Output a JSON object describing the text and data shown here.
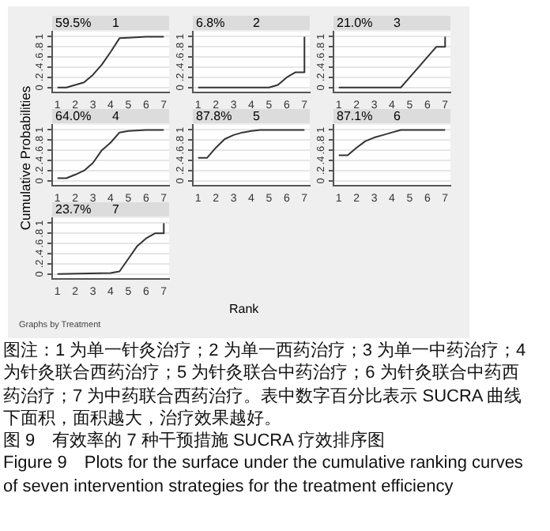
{
  "chart_data": [
    {
      "type": "line",
      "title": "1",
      "subtitle": "59.5%",
      "series": [
        {
          "color": "#333333",
          "x": [
            1,
            1.5,
            2,
            2.5,
            3,
            3.5,
            4,
            4.5,
            5,
            6,
            7
          ],
          "values": [
            0,
            0,
            0.05,
            0.1,
            0.25,
            0.45,
            0.7,
            0.97,
            0.98,
            1,
            1
          ]
        }
      ],
      "xlim": [
        0.7,
        7.3
      ],
      "xticks": [
        1,
        2,
        3,
        4,
        5,
        6,
        7
      ],
      "ylim": [
        -0.1,
        1.1
      ],
      "yticks": [
        {
          "value": 0,
          "label": "0"
        },
        {
          "value": 0.2,
          "label": ".2"
        },
        {
          "value": 0.4,
          "label": ".4"
        },
        {
          "value": 0.6,
          "label": ".6"
        },
        {
          "value": 0.8,
          "label": ".8"
        },
        {
          "value": 1,
          "label": "1"
        }
      ],
      "grid": "y"
    },
    {
      "type": "line",
      "title": "2",
      "subtitle": "6.8%",
      "series": [
        {
          "color": "#333333",
          "x": [
            1,
            5,
            5.5,
            6,
            6.5,
            7,
            7
          ],
          "values": [
            0,
            0,
            0.05,
            0.2,
            0.3,
            0.3,
            1
          ]
        }
      ],
      "xlim": [
        0.7,
        7.3
      ],
      "xticks": [
        1,
        2,
        3,
        4,
        5,
        6,
        7
      ],
      "ylim": [
        -0.1,
        1.1
      ],
      "yticks": [
        {
          "value": 0,
          "label": "0"
        },
        {
          "value": 0.2,
          "label": ".2"
        },
        {
          "value": 0.4,
          "label": ".4"
        },
        {
          "value": 0.6,
          "label": ".6"
        },
        {
          "value": 0.8,
          "label": ".8"
        },
        {
          "value": 1,
          "label": "1"
        }
      ],
      "grid": "y"
    },
    {
      "type": "line",
      "title": "3",
      "subtitle": "21.0%",
      "series": [
        {
          "color": "#333333",
          "x": [
            1,
            4.5,
            5,
            5.5,
            6,
            6.5,
            7,
            7
          ],
          "values": [
            0,
            0,
            0.2,
            0.4,
            0.6,
            0.8,
            0.8,
            1
          ]
        }
      ],
      "xlim": [
        0.7,
        7.3
      ],
      "xticks": [
        1,
        2,
        3,
        4,
        5,
        6,
        7
      ],
      "ylim": [
        -0.1,
        1.1
      ],
      "yticks": [
        {
          "value": 0,
          "label": "0"
        },
        {
          "value": 0.2,
          "label": ".2"
        },
        {
          "value": 0.4,
          "label": ".4"
        },
        {
          "value": 0.6,
          "label": ".6"
        },
        {
          "value": 0.8,
          "label": ".8"
        },
        {
          "value": 1,
          "label": "1"
        }
      ],
      "grid": "y"
    },
    {
      "type": "line",
      "title": "4",
      "subtitle": "64.0%",
      "series": [
        {
          "color": "#333333",
          "x": [
            1,
            1.5,
            2,
            2.5,
            3,
            3.5,
            4,
            4.5,
            5,
            6,
            7
          ],
          "values": [
            0.05,
            0.05,
            0.12,
            0.2,
            0.35,
            0.6,
            0.75,
            0.95,
            0.98,
            1,
            1
          ]
        }
      ],
      "xlim": [
        0.7,
        7.3
      ],
      "xticks": [
        1,
        2,
        3,
        4,
        5,
        6,
        7
      ],
      "ylim": [
        -0.1,
        1.1
      ],
      "yticks": [
        {
          "value": 0,
          "label": "0"
        },
        {
          "value": 0.2,
          "label": ".2"
        },
        {
          "value": 0.4,
          "label": ".4"
        },
        {
          "value": 0.6,
          "label": ".6"
        },
        {
          "value": 0.8,
          "label": ".8"
        },
        {
          "value": 1,
          "label": "1"
        }
      ],
      "grid": "y"
    },
    {
      "type": "line",
      "title": "5",
      "subtitle": "87.8%",
      "series": [
        {
          "color": "#333333",
          "x": [
            1,
            1.5,
            2,
            2.5,
            3,
            3.5,
            4,
            4.5,
            7
          ],
          "values": [
            0.45,
            0.45,
            0.65,
            0.82,
            0.9,
            0.95,
            0.98,
            1,
            1
          ]
        }
      ],
      "xlim": [
        0.7,
        7.3
      ],
      "xticks": [
        1,
        2,
        3,
        4,
        5,
        6,
        7
      ],
      "ylim": [
        -0.1,
        1.1
      ],
      "yticks": [
        {
          "value": 0,
          "label": "0"
        },
        {
          "value": 0.2,
          "label": ".2"
        },
        {
          "value": 0.4,
          "label": ".4"
        },
        {
          "value": 0.6,
          "label": ".6"
        },
        {
          "value": 0.8,
          "label": ".8"
        },
        {
          "value": 1,
          "label": "1"
        }
      ],
      "grid": "y"
    },
    {
      "type": "line",
      "title": "6",
      "subtitle": "87.1%",
      "series": [
        {
          "color": "#333333",
          "x": [
            1,
            1.5,
            2,
            2.5,
            3,
            3.5,
            4,
            4.5,
            7
          ],
          "values": [
            0.5,
            0.5,
            0.65,
            0.78,
            0.85,
            0.9,
            0.95,
            1,
            1
          ]
        }
      ],
      "xlim": [
        0.7,
        7.3
      ],
      "xticks": [
        1,
        2,
        3,
        4,
        5,
        6,
        7
      ],
      "ylim": [
        -0.1,
        1.1
      ],
      "yticks": [
        {
          "value": 0,
          "label": "0"
        },
        {
          "value": 0.2,
          "label": ".2"
        },
        {
          "value": 0.4,
          "label": ".4"
        },
        {
          "value": 0.6,
          "label": ".6"
        },
        {
          "value": 0.8,
          "label": ".8"
        },
        {
          "value": 1,
          "label": "1"
        }
      ],
      "grid": "y"
    },
    {
      "type": "line",
      "title": "7",
      "subtitle": "23.7%",
      "series": [
        {
          "color": "#333333",
          "x": [
            1,
            4,
            4.5,
            5,
            5.5,
            6,
            6.5,
            7,
            7
          ],
          "values": [
            0,
            0.02,
            0.05,
            0.3,
            0.55,
            0.7,
            0.8,
            0.8,
            1
          ]
        }
      ],
      "xlim": [
        0.7,
        7.3
      ],
      "xticks": [
        1,
        2,
        3,
        4,
        5,
        6,
        7
      ],
      "ylim": [
        -0.1,
        1.1
      ],
      "yticks": [
        {
          "value": 0,
          "label": "0"
        },
        {
          "value": 0.2,
          "label": ".2"
        },
        {
          "value": 0.4,
          "label": ".4"
        },
        {
          "value": 0.6,
          "label": ".6"
        },
        {
          "value": 0.8,
          "label": ".8"
        },
        {
          "value": 1,
          "label": "1"
        }
      ],
      "grid": "y"
    },
    {
      "type": "other",
      "xlabel": "Rank",
      "ylabel": "Cumulative Probabilities",
      "annotations": [
        "Graphs by Treatment",
        "图注：1 为单一针灸治疗；2 为单一西药治疗；3 为单一中药治疗；4 为针灸联合西药治疗；5 为针灸联合中药治疗；6 为针灸联合中药西药治疗；7 为中药联合西药治疗。表中数字百分比表示 SUCRA 曲线下面积，面积越大，治疗效果越好。",
        "图 9　有效率的 7 种干预措施 SUCRA 疗效排序图",
        "Figure 9　Plots for the surface under the cumulative ranking curves of seven intervention strategies for the treatment efficiency"
      ]
    }
  ]
}
